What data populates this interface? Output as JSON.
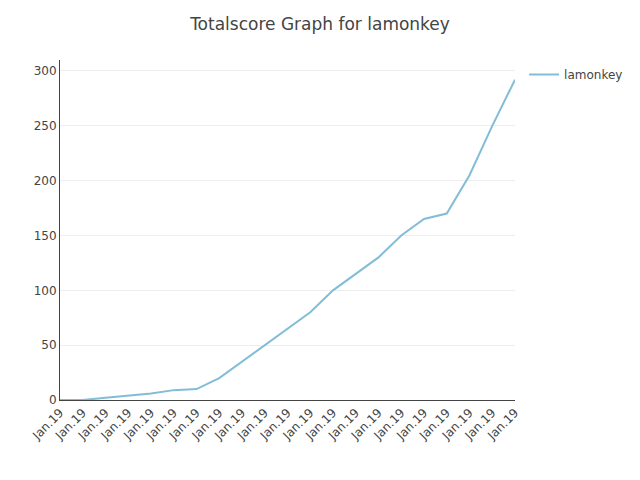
{
  "chart_data": {
    "type": "line",
    "title": "Totalscore Graph for lamonkey",
    "categories": [
      "Jan.19",
      "Jan.19",
      "Jan.19",
      "Jan.19",
      "Jan.19",
      "Jan.19",
      "Jan.19",
      "Jan.19",
      "Jan.19",
      "Jan.19",
      "Jan.19",
      "Jan.19",
      "Jan.19",
      "Jan.19",
      "Jan.19",
      "Jan.19",
      "Jan.19",
      "Jan.19",
      "Jan.19",
      "Jan.19",
      "Jan.19"
    ],
    "series": [
      {
        "name": "lamonkey",
        "color": "#82bdd6",
        "values": [
          0,
          0,
          2,
          4,
          6,
          9,
          10,
          20,
          35,
          50,
          65,
          80,
          100,
          115,
          130,
          150,
          165,
          170,
          205,
          250,
          292
        ]
      }
    ],
    "ylim": [
      0,
      310
    ],
    "yticks": [
      0,
      50,
      100,
      150,
      200,
      250,
      300
    ],
    "grid": true,
    "legend": "upper right"
  }
}
